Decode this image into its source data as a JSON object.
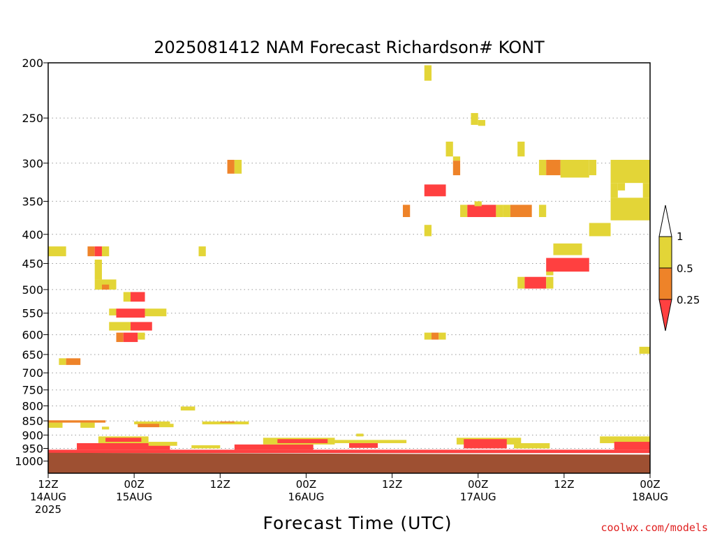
{
  "chart_data": {
    "type": "heatmap",
    "title": "2025081412 NAM Forecast Richardson# KONT",
    "xlabel": "Forecast Time (UTC)",
    "ylabel": "",
    "x_range_hours": [
      0,
      84
    ],
    "y_range_hpa": [
      200,
      1050
    ],
    "y_scale": "log",
    "grid": "dotted horizontal",
    "x_ticks": [
      {
        "hour": 0,
        "line1": "12Z",
        "line2": "14AUG",
        "line3": "2025"
      },
      {
        "hour": 12,
        "line1": "00Z",
        "line2": "15AUG",
        "line3": ""
      },
      {
        "hour": 24,
        "line1": "12Z",
        "line2": "",
        "line3": ""
      },
      {
        "hour": 36,
        "line1": "00Z",
        "line2": "16AUG",
        "line3": ""
      },
      {
        "hour": 48,
        "line1": "12Z",
        "line2": "",
        "line3": ""
      },
      {
        "hour": 60,
        "line1": "00Z",
        "line2": "17AUG",
        "line3": ""
      },
      {
        "hour": 72,
        "line1": "12Z",
        "line2": "",
        "line3": ""
      },
      {
        "hour": 84,
        "line1": "00Z",
        "line2": "18AUG",
        "line3": ""
      }
    ],
    "y_ticks": [
      200,
      250,
      300,
      350,
      400,
      450,
      500,
      550,
      600,
      650,
      700,
      750,
      800,
      850,
      900,
      950,
      1000
    ],
    "colorbar": {
      "labels": [
        "1",
        "0.5",
        "0.25"
      ],
      "bins": [
        {
          "range": "0.5-1",
          "color": "#e3d537"
        },
        {
          "range": "0.25-0.5",
          "color": "#ee8329"
        },
        {
          "range": "<0.25",
          "color": "#ff4040"
        }
      ]
    },
    "colors": {
      "yellow": "#e3d537",
      "orange": "#ee8329",
      "red": "#ff4040",
      "ground": "#9e5032"
    },
    "ground": {
      "top_hpa_start": 967,
      "top_hpa_end": 974
    },
    "cells": [
      {
        "h0": 0,
        "h1": 2.5,
        "p0": 420,
        "p1": 437,
        "c": "yellow"
      },
      {
        "h0": 5.5,
        "h1": 6.5,
        "p0": 420,
        "p1": 437,
        "c": "orange"
      },
      {
        "h0": 6.5,
        "h1": 7.5,
        "p0": 420,
        "p1": 437,
        "c": "red"
      },
      {
        "h0": 7.5,
        "h1": 8.5,
        "p0": 420,
        "p1": 437,
        "c": "yellow"
      },
      {
        "h0": 21,
        "h1": 22,
        "p0": 420,
        "p1": 437,
        "c": "yellow"
      },
      {
        "h0": 6.5,
        "h1": 7.5,
        "p0": 443,
        "p1": 480,
        "c": "yellow"
      },
      {
        "h0": 6.5,
        "h1": 9.5,
        "p0": 480,
        "p1": 500,
        "c": "yellow"
      },
      {
        "h0": 7.5,
        "h1": 8.5,
        "p0": 490,
        "p1": 500,
        "c": "orange"
      },
      {
        "h0": 10.5,
        "h1": 11.5,
        "p0": 505,
        "p1": 525,
        "c": "yellow"
      },
      {
        "h0": 11.5,
        "h1": 13.5,
        "p0": 505,
        "p1": 525,
        "c": "red"
      },
      {
        "h0": 8.5,
        "h1": 9.5,
        "p0": 540,
        "p1": 555,
        "c": "yellow"
      },
      {
        "h0": 9.5,
        "h1": 13.5,
        "p0": 540,
        "p1": 560,
        "c": "red"
      },
      {
        "h0": 13.5,
        "h1": 16.5,
        "p0": 540,
        "p1": 557,
        "c": "yellow"
      },
      {
        "h0": 8.5,
        "h1": 11.5,
        "p0": 570,
        "p1": 590,
        "c": "yellow"
      },
      {
        "h0": 11.5,
        "h1": 14.5,
        "p0": 570,
        "p1": 590,
        "c": "red"
      },
      {
        "h0": 9.5,
        "h1": 10.5,
        "p0": 595,
        "p1": 618,
        "c": "orange"
      },
      {
        "h0": 10.5,
        "h1": 12.5,
        "p0": 595,
        "p1": 618,
        "c": "red"
      },
      {
        "h0": 12.5,
        "h1": 13.5,
        "p0": 595,
        "p1": 612,
        "c": "yellow"
      },
      {
        "h0": 1.5,
        "h1": 2.5,
        "p0": 660,
        "p1": 678,
        "c": "yellow"
      },
      {
        "h0": 2.5,
        "h1": 4.5,
        "p0": 660,
        "p1": 678,
        "c": "orange"
      },
      {
        "h0": 18.5,
        "h1": 20.5,
        "p0": 802,
        "p1": 815,
        "c": "yellow"
      },
      {
        "h0": 25,
        "h1": 26,
        "p0": 296,
        "p1": 313,
        "c": "orange"
      },
      {
        "h0": 26,
        "h1": 27,
        "p0": 296,
        "p1": 313,
        "c": "yellow"
      },
      {
        "h0": 52.5,
        "h1": 53.5,
        "p0": 202,
        "p1": 215,
        "c": "yellow"
      },
      {
        "h0": 59,
        "h1": 60,
        "p0": 245,
        "p1": 257,
        "c": "yellow"
      },
      {
        "h0": 60,
        "h1": 61,
        "p0": 252,
        "p1": 258,
        "c": "yellow"
      },
      {
        "h0": 55.5,
        "h1": 56.5,
        "p0": 275,
        "p1": 292,
        "c": "yellow"
      },
      {
        "h0": 65.5,
        "h1": 66.5,
        "p0": 275,
        "p1": 292,
        "c": "yellow"
      },
      {
        "h0": 56.5,
        "h1": 57.5,
        "p0": 292,
        "p1": 297,
        "c": "yellow"
      },
      {
        "h0": 56.5,
        "h1": 57.5,
        "p0": 297,
        "p1": 315,
        "c": "orange"
      },
      {
        "h0": 52.5,
        "h1": 55.5,
        "p0": 327,
        "p1": 343,
        "c": "red"
      },
      {
        "h0": 49.5,
        "h1": 50.5,
        "p0": 355,
        "p1": 373,
        "c": "orange"
      },
      {
        "h0": 57.5,
        "h1": 58.5,
        "p0": 355,
        "p1": 373,
        "c": "yellow"
      },
      {
        "h0": 58.5,
        "h1": 62.5,
        "p0": 355,
        "p1": 373,
        "c": "red"
      },
      {
        "h0": 62.5,
        "h1": 63.5,
        "p0": 365,
        "p1": 373,
        "c": "yellow"
      },
      {
        "h0": 59.5,
        "h1": 60.5,
        "p0": 350,
        "p1": 357,
        "c": "yellow"
      },
      {
        "h0": 62.5,
        "h1": 63.5,
        "p0": 355,
        "p1": 368,
        "c": "yellow"
      },
      {
        "h0": 63.5,
        "h1": 64.5,
        "p0": 355,
        "p1": 373,
        "c": "yellow"
      },
      {
        "h0": 64.5,
        "h1": 67.5,
        "p0": 355,
        "p1": 373,
        "c": "orange"
      },
      {
        "h0": 68.5,
        "h1": 69.5,
        "p0": 355,
        "p1": 373,
        "c": "yellow"
      },
      {
        "h0": 52.5,
        "h1": 53.5,
        "p0": 385,
        "p1": 403,
        "c": "yellow"
      },
      {
        "h0": 52.5,
        "h1": 53.5,
        "p0": 595,
        "p1": 612,
        "c": "yellow"
      },
      {
        "h0": 53.5,
        "h1": 54.5,
        "p0": 595,
        "p1": 612,
        "c": "orange"
      },
      {
        "h0": 54.5,
        "h1": 55.5,
        "p0": 595,
        "p1": 612,
        "c": "yellow"
      },
      {
        "h0": 68.5,
        "h1": 69.5,
        "p0": 296,
        "p1": 315,
        "c": "yellow"
      },
      {
        "h0": 69.5,
        "h1": 71.5,
        "p0": 296,
        "p1": 315,
        "c": "orange"
      },
      {
        "h0": 71.5,
        "h1": 75.5,
        "p0": 296,
        "p1": 318,
        "c": "yellow"
      },
      {
        "h0": 75.5,
        "h1": 76.5,
        "p0": 296,
        "p1": 315,
        "c": "yellow"
      },
      {
        "h0": 78.5,
        "h1": 84,
        "p0": 296,
        "p1": 325,
        "c": "yellow"
      },
      {
        "h0": 78.5,
        "h1": 79.5,
        "p0": 325,
        "p1": 345,
        "c": "yellow"
      },
      {
        "h0": 79.5,
        "h1": 80.5,
        "p0": 325,
        "p1": 335,
        "c": "yellow"
      },
      {
        "h0": 83,
        "h1": 84,
        "p0": 325,
        "p1": 345,
        "c": "yellow"
      },
      {
        "h0": 78.5,
        "h1": 84,
        "p0": 345,
        "p1": 378,
        "c": "yellow"
      },
      {
        "h0": 75.5,
        "h1": 78.5,
        "p0": 382,
        "p1": 403,
        "c": "yellow"
      },
      {
        "h0": 70.5,
        "h1": 74.5,
        "p0": 415,
        "p1": 435,
        "c": "yellow"
      },
      {
        "h0": 69.5,
        "h1": 70.5,
        "p0": 462,
        "p1": 472,
        "c": "yellow"
      },
      {
        "h0": 69.5,
        "h1": 75.5,
        "p0": 440,
        "p1": 465,
        "c": "red"
      },
      {
        "h0": 65.5,
        "h1": 66.5,
        "p0": 475,
        "p1": 498,
        "c": "yellow"
      },
      {
        "h0": 66.5,
        "h1": 69.5,
        "p0": 475,
        "p1": 498,
        "c": "red"
      },
      {
        "h0": 69.5,
        "h1": 70.5,
        "p0": 475,
        "p1": 498,
        "c": "yellow"
      },
      {
        "h0": 82.5,
        "h1": 84,
        "p0": 630,
        "p1": 648,
        "c": "yellow"
      },
      {
        "h0": 0,
        "h1": 8,
        "p0": 848,
        "p1": 856,
        "c": "orange"
      },
      {
        "h0": 0,
        "h1": 2,
        "p0": 856,
        "p1": 874,
        "c": "yellow"
      },
      {
        "h0": 4.5,
        "h1": 6.5,
        "p0": 856,
        "p1": 874,
        "c": "yellow"
      },
      {
        "h0": 7.5,
        "h1": 8.5,
        "p0": 870,
        "p1": 880,
        "c": "yellow"
      },
      {
        "h0": 12,
        "h1": 17,
        "p0": 852,
        "p1": 862,
        "c": "yellow"
      },
      {
        "h0": 12.5,
        "h1": 15.5,
        "p0": 860,
        "p1": 872,
        "c": "orange"
      },
      {
        "h0": 15.5,
        "h1": 17.5,
        "p0": 860,
        "p1": 872,
        "c": "yellow"
      },
      {
        "h0": 21.5,
        "h1": 28,
        "p0": 852,
        "p1": 862,
        "c": "yellow"
      },
      {
        "h0": 24,
        "h1": 26,
        "p0": 852,
        "p1": 856,
        "c": "orange"
      }
    ],
    "low_level_band": [
      {
        "h0": 0,
        "h1": 84,
        "p0": 955,
        "p1": 968,
        "c": "red"
      },
      {
        "h0": 4,
        "h1": 17,
        "p0": 930,
        "p1": 955,
        "c": "red"
      },
      {
        "h0": 7,
        "h1": 14,
        "p0": 905,
        "p1": 930,
        "c": "yellow"
      },
      {
        "h0": 8,
        "h1": 13,
        "p0": 910,
        "p1": 925,
        "c": "red"
      },
      {
        "h0": 14,
        "h1": 18,
        "p0": 925,
        "p1": 940,
        "c": "yellow"
      },
      {
        "h0": 20,
        "h1": 24,
        "p0": 938,
        "p1": 950,
        "c": "yellow"
      },
      {
        "h0": 26,
        "h1": 37,
        "p0": 935,
        "p1": 955,
        "c": "red"
      },
      {
        "h0": 30,
        "h1": 40,
        "p0": 910,
        "p1": 935,
        "c": "yellow"
      },
      {
        "h0": 32,
        "h1": 39,
        "p0": 915,
        "p1": 930,
        "c": "red"
      },
      {
        "h0": 40,
        "h1": 50,
        "p0": 918,
        "p1": 930,
        "c": "yellow"
      },
      {
        "h0": 42,
        "h1": 46,
        "p0": 930,
        "p1": 948,
        "c": "red"
      },
      {
        "h0": 57,
        "h1": 66,
        "p0": 910,
        "p1": 935,
        "c": "yellow"
      },
      {
        "h0": 58,
        "h1": 64,
        "p0": 915,
        "p1": 950,
        "c": "red"
      },
      {
        "h0": 65,
        "h1": 70,
        "p0": 930,
        "p1": 950,
        "c": "yellow"
      },
      {
        "h0": 77,
        "h1": 84,
        "p0": 905,
        "p1": 930,
        "c": "yellow"
      },
      {
        "h0": 79,
        "h1": 84,
        "p0": 925,
        "p1": 955,
        "c": "red"
      },
      {
        "h0": 43,
        "h1": 44,
        "p0": 895,
        "p1": 905,
        "c": "yellow"
      }
    ]
  },
  "credit": "coolwx.com/models"
}
